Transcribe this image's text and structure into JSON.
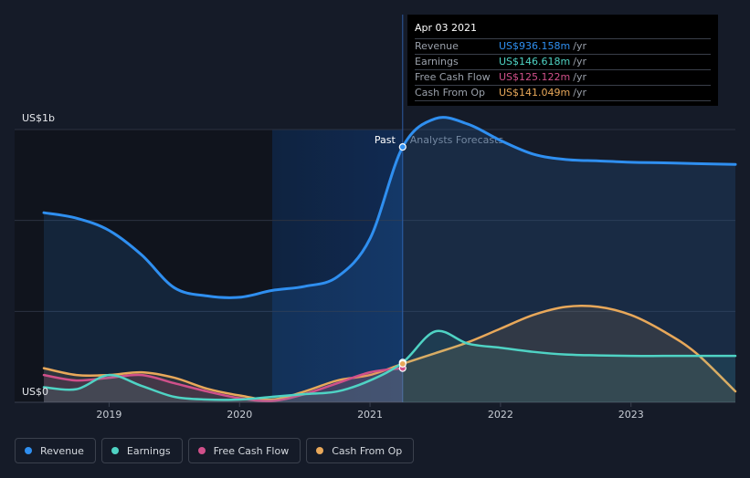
{
  "chart_data": {
    "type": "area",
    "y_labels": {
      "top": "US$1b",
      "bottom": "US$0"
    },
    "ylim": [
      0,
      1000
    ],
    "x_ticks": [
      "2019",
      "2020",
      "2021",
      "2022",
      "2023"
    ],
    "region_labels": {
      "past": "Past",
      "forecast": "Analysts Forecasts"
    },
    "split_date": 2021.25,
    "shade_start": 2020.25,
    "series": [
      {
        "name": "Revenue",
        "color": "#2f8ff0",
        "x": [
          2018.5,
          2018.75,
          2019.0,
          2019.25,
          2019.5,
          2019.75,
          2020.0,
          2020.25,
          2020.5,
          2020.75,
          2021.0,
          2021.25,
          2021.5,
          2021.75,
          2022.0,
          2022.25,
          2022.5,
          2022.75,
          2023.0,
          2023.25,
          2023.5,
          2023.8
        ],
        "y": [
          695,
          675,
          630,
          540,
          420,
          390,
          385,
          410,
          425,
          460,
          600,
          936,
          1040,
          1020,
          960,
          910,
          890,
          885,
          880,
          878,
          875,
          872
        ]
      },
      {
        "name": "Earnings",
        "color": "#4fd3c4",
        "x": [
          2018.5,
          2018.75,
          2019.0,
          2019.25,
          2019.5,
          2019.75,
          2020.0,
          2020.25,
          2020.5,
          2020.75,
          2021.0,
          2021.25,
          2021.5,
          2021.75,
          2022.0,
          2022.25,
          2022.5,
          2022.75,
          2023.0,
          2023.25,
          2023.5,
          2023.8
        ],
        "y": [
          55,
          48,
          100,
          60,
          20,
          10,
          10,
          20,
          30,
          40,
          80,
          146,
          260,
          215,
          200,
          185,
          175,
          172,
          170,
          170,
          170,
          170
        ]
      },
      {
        "name": "Free Cash Flow",
        "color": "#d0508a",
        "x": [
          2018.5,
          2018.75,
          2019.0,
          2019.25,
          2019.5,
          2019.75,
          2020.0,
          2020.25,
          2020.5,
          2020.75,
          2021.0,
          2021.25
        ],
        "y": [
          100,
          80,
          90,
          100,
          70,
          40,
          15,
          5,
          30,
          70,
          110,
          125
        ]
      },
      {
        "name": "Cash From Op",
        "color": "#e8a85a",
        "x": [
          2018.5,
          2018.75,
          2019.0,
          2019.25,
          2019.5,
          2019.75,
          2020.0,
          2020.25,
          2020.5,
          2020.75,
          2021.0,
          2021.25,
          2021.5,
          2021.75,
          2022.0,
          2022.25,
          2022.5,
          2022.75,
          2023.0,
          2023.25,
          2023.5,
          2023.8
        ],
        "y": [
          125,
          100,
          100,
          110,
          90,
          50,
          25,
          10,
          40,
          80,
          100,
          141,
          180,
          220,
          270,
          320,
          350,
          350,
          320,
          260,
          180,
          40
        ]
      }
    ],
    "tooltip": {
      "date": "Apr 03 2021",
      "unit": "/yr",
      "rows": [
        {
          "label": "Revenue",
          "value": "US$936.158m",
          "color": "#2f8ff0"
        },
        {
          "label": "Earnings",
          "value": "US$146.618m",
          "color": "#4fd3c4"
        },
        {
          "label": "Free Cash Flow",
          "value": "US$125.122m",
          "color": "#d0508a"
        },
        {
          "label": "Cash From Op",
          "value": "US$141.049m",
          "color": "#e8a85a"
        }
      ]
    },
    "legend": [
      "Revenue",
      "Earnings",
      "Free Cash Flow",
      "Cash From Op"
    ]
  }
}
